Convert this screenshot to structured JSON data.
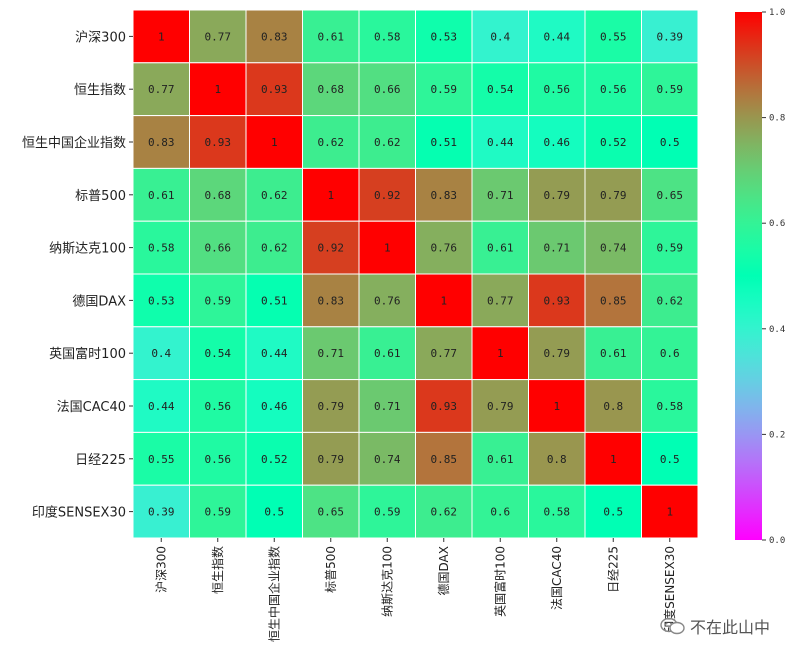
{
  "chart_data": {
    "type": "heatmap",
    "title": "",
    "row_labels": [
      "沪深300",
      "恒生指数",
      "恒生中国企业指数",
      "标普500",
      "纳斯达克100",
      "德国DAX",
      "英国富时100",
      "法国CAC40",
      "日经225",
      "印度SENSEX30"
    ],
    "col_labels": [
      "沪深300",
      "恒生指数",
      "恒生中国企业指数",
      "标普500",
      "纳斯达克100",
      "德国DAX",
      "英国富时100",
      "法国CAC40",
      "日经225",
      "印度SENSEX30"
    ],
    "values": [
      [
        1,
        0.77,
        0.83,
        0.61,
        0.58,
        0.53,
        0.4,
        0.44,
        0.55,
        0.39
      ],
      [
        0.77,
        1,
        0.93,
        0.68,
        0.66,
        0.59,
        0.54,
        0.56,
        0.56,
        0.59
      ],
      [
        0.83,
        0.93,
        1,
        0.62,
        0.62,
        0.51,
        0.44,
        0.46,
        0.52,
        0.5
      ],
      [
        0.61,
        0.68,
        0.62,
        1,
        0.92,
        0.83,
        0.71,
        0.79,
        0.79,
        0.65
      ],
      [
        0.58,
        0.66,
        0.62,
        0.92,
        1,
        0.76,
        0.61,
        0.71,
        0.74,
        0.59
      ],
      [
        0.53,
        0.59,
        0.51,
        0.83,
        0.76,
        1,
        0.77,
        0.93,
        0.85,
        0.62
      ],
      [
        0.4,
        0.54,
        0.44,
        0.71,
        0.61,
        0.77,
        1,
        0.79,
        0.61,
        0.6
      ],
      [
        0.44,
        0.56,
        0.46,
        0.79,
        0.71,
        0.93,
        0.79,
        1,
        0.8,
        0.58
      ],
      [
        0.55,
        0.56,
        0.52,
        0.79,
        0.74,
        0.85,
        0.61,
        0.8,
        1,
        0.5
      ],
      [
        0.39,
        0.59,
        0.5,
        0.65,
        0.59,
        0.62,
        0.6,
        0.58,
        0.5,
        1
      ]
    ],
    "colormap": "rainbow",
    "vmin": 0.0,
    "vmax": 1.0,
    "colorbar_ticks": [
      0.0,
      0.2,
      0.4,
      0.6,
      0.8,
      1.0
    ],
    "colorbar_tick_labels": [
      "0.0",
      "0.2",
      "0.4",
      "0.6",
      "0.8",
      "1.0"
    ],
    "annotated": true
  },
  "watermark": {
    "text": "不在此山中",
    "icon": "wechat-icon"
  }
}
